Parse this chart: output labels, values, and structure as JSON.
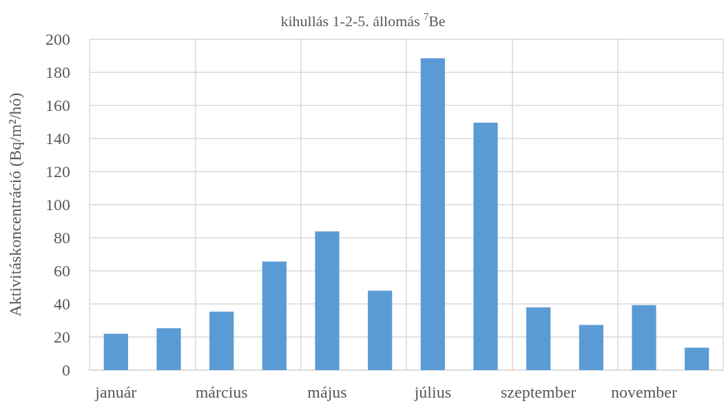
{
  "chart_data": {
    "type": "bar",
    "title": "kihullás 1-2-5. állomás $^{7}$Be",
    "ylabel": "Aktivitáskoncentráció (Bq/m²/hó)",
    "categories": [
      "január",
      null,
      "március",
      null,
      "május",
      null,
      "július",
      null,
      "szeptember",
      null,
      "november",
      null
    ],
    "values": [
      22,
      25.3,
      35.3,
      65.6,
      83.9,
      48,
      188.5,
      149.6,
      37.9,
      27.3,
      39.3,
      13.5
    ],
    "color": "#5b9bd5",
    "ylim": [
      0,
      200
    ],
    "yticks": [
      0,
      20,
      40,
      60,
      80,
      100,
      120,
      140,
      160,
      180,
      200
    ],
    "grid": true
  }
}
